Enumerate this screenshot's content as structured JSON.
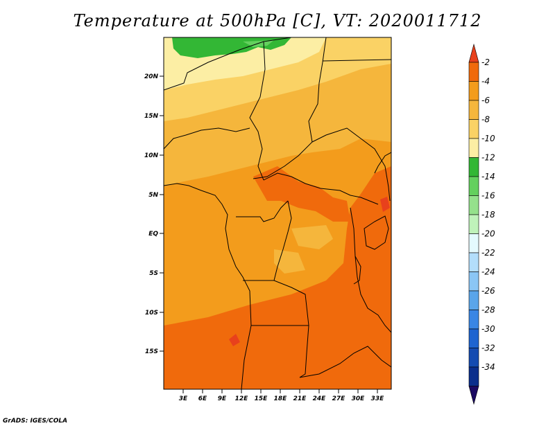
{
  "title": "Temperature at 500hPa [C], VT: 2020011712",
  "credit": "GrADS: IGES/COLA",
  "map": {
    "lat_labels": [
      "20N",
      "15N",
      "10N",
      "5N",
      "EQ",
      "5S",
      "10S",
      "15S"
    ],
    "lon_labels": [
      "3E",
      "6E",
      "9E",
      "12E",
      "15E",
      "18E",
      "21E",
      "24E",
      "27E",
      "30E",
      "33E"
    ]
  },
  "colorbar": {
    "labels": [
      "-2",
      "-4",
      "-6",
      "-8",
      "-10",
      "-12",
      "-14",
      "-16",
      "-18",
      "-20",
      "-22",
      "-24",
      "-26",
      "-28",
      "-30",
      "-32",
      "-34"
    ],
    "colors": [
      "#e8411c",
      "#f06a0c",
      "#f39c1c",
      "#f5b63c",
      "#fad265",
      "#fceea4",
      "#33b735",
      "#64d05e",
      "#95e18c",
      "#bff2ba",
      "#e4fafe",
      "#b3defb",
      "#8bc6f5",
      "#5aa5ea",
      "#3a86e4",
      "#1e64d0",
      "#144bb1",
      "#0a2e8c",
      "#1b0a62"
    ]
  }
}
